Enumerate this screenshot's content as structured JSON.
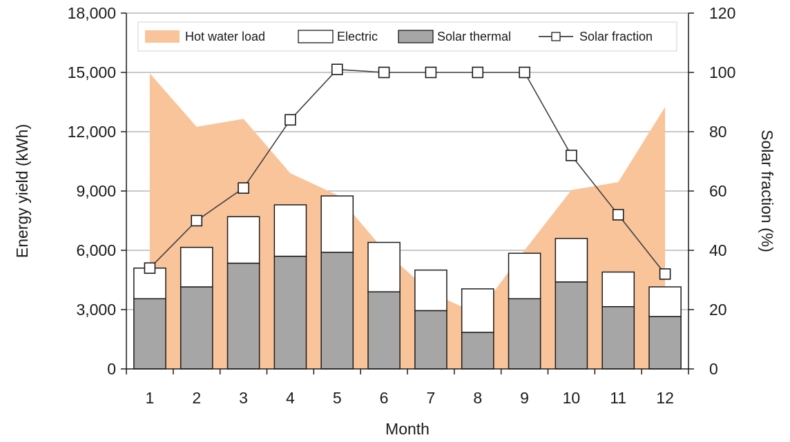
{
  "chart_data": {
    "type": "bar",
    "xlabel": "Month",
    "ylabel": "Energy yield (kWh)",
    "y2label": "Solar fraction (%)",
    "categories": [
      "1",
      "2",
      "3",
      "4",
      "5",
      "6",
      "7",
      "8",
      "9",
      "10",
      "11",
      "12"
    ],
    "ylim": [
      0,
      18000
    ],
    "y2lim": [
      0,
      120
    ],
    "yticks": [
      0,
      3000,
      6000,
      9000,
      12000,
      15000,
      18000
    ],
    "ytick_labels": [
      "0",
      "3,000",
      "6,000",
      "9,000",
      "12,000",
      "15,000",
      "18,000"
    ],
    "y2ticks": [
      0,
      20,
      40,
      60,
      80,
      100,
      120
    ],
    "y2tick_labels": [
      "0",
      "20",
      "40",
      "60",
      "80",
      "100",
      "120"
    ],
    "grid": true,
    "legend_position": "top",
    "series": [
      {
        "name": "Hot water load",
        "kind": "area",
        "axis": "left",
        "color": "#f9c49a",
        "values": [
          14950,
          12250,
          12650,
          9900,
          8800,
          6000,
          3850,
          2800,
          6000,
          9050,
          9450,
          13250
        ]
      },
      {
        "name": "Electric",
        "kind": "bar-stacked",
        "axis": "left",
        "color": "#ffffff",
        "values": [
          1550,
          2000,
          2350,
          2600,
          2850,
          2500,
          2050,
          2200,
          2300,
          2200,
          1750,
          1500
        ]
      },
      {
        "name": "Solar thermal",
        "kind": "bar-stacked",
        "axis": "left",
        "color": "#a6a6a6",
        "values": [
          3550,
          4150,
          5350,
          5700,
          5900,
          3900,
          2950,
          1850,
          3550,
          4400,
          3150,
          2650
        ]
      },
      {
        "name": "Solar fraction",
        "kind": "line",
        "axis": "right",
        "color": "#404040",
        "values": [
          34,
          50,
          61,
          84,
          101,
          100,
          100,
          100,
          100,
          72,
          52,
          32
        ]
      }
    ]
  }
}
